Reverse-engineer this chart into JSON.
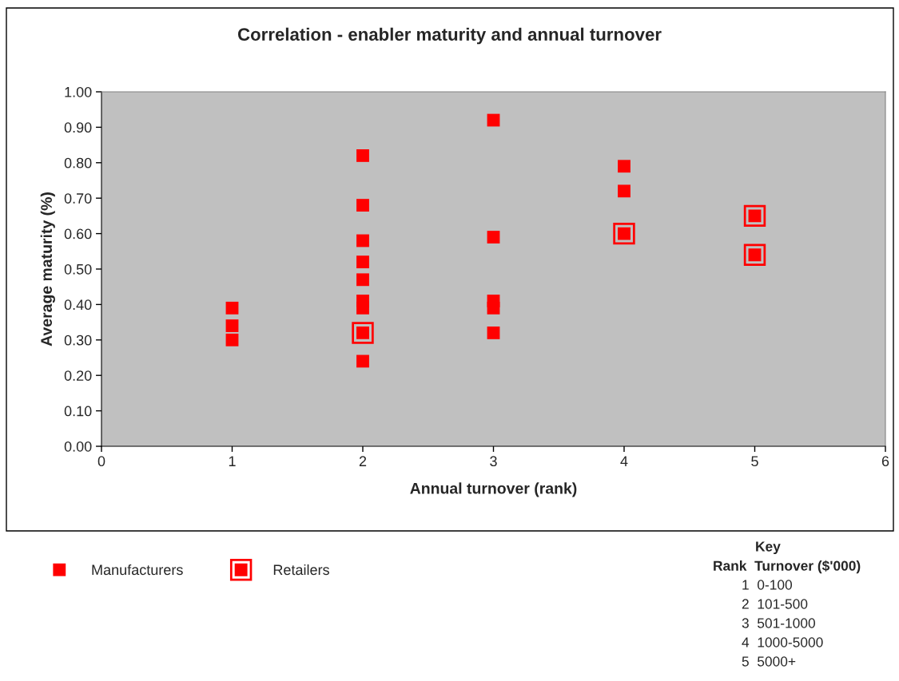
{
  "chart_data": {
    "type": "scatter",
    "title": "Correlation - enabler maturity and annual turnover",
    "xlabel": "Annual turnover (rank)",
    "ylabel": "Average maturity (%)",
    "xlim": [
      0,
      6
    ],
    "xticks": [
      0,
      1,
      2,
      3,
      4,
      5,
      6
    ],
    "ylim": [
      0,
      1
    ],
    "yticks": [
      {
        "value": 0,
        "label": "0.00"
      },
      {
        "value": 0.1,
        "label": "0.10"
      },
      {
        "value": 0.2,
        "label": "0.20"
      },
      {
        "value": 0.3,
        "label": "0.30"
      },
      {
        "value": 0.4,
        "label": "0.40"
      },
      {
        "value": 0.5,
        "label": "0.50"
      },
      {
        "value": 0.6,
        "label": "0.60"
      },
      {
        "value": 0.7,
        "label": "0.70"
      },
      {
        "value": 0.8,
        "label": "0.80"
      },
      {
        "value": 0.9,
        "label": "0.90"
      },
      {
        "value": 1,
        "label": "1.00"
      }
    ],
    "grid": false,
    "legend": "bottom left",
    "marker": "square",
    "series": [
      {
        "name": "Manufacturers",
        "color": "#ff0000",
        "x": [
          1,
          1,
          1,
          2,
          2,
          2,
          2,
          2,
          2,
          2,
          2,
          3,
          3,
          3,
          3,
          3,
          4,
          4
        ],
        "values": [
          0.39,
          0.34,
          0.3,
          0.82,
          0.68,
          0.58,
          0.52,
          0.47,
          0.41,
          0.39,
          0.24,
          0.92,
          0.59,
          0.41,
          0.39,
          0.32,
          0.79,
          0.72
        ]
      },
      {
        "name": "Retailers",
        "color": "#ff0000",
        "x": [
          2,
          4,
          5,
          5
        ],
        "values": [
          0.32,
          0.6,
          0.65,
          0.54
        ]
      }
    ],
    "annotations": [
      "Key",
      "Rank  Turnover ($'000)",
      "1  0-100",
      "2  101-500",
      "3  501-1000",
      "4  1000-5000",
      "5  5000+"
    ]
  }
}
